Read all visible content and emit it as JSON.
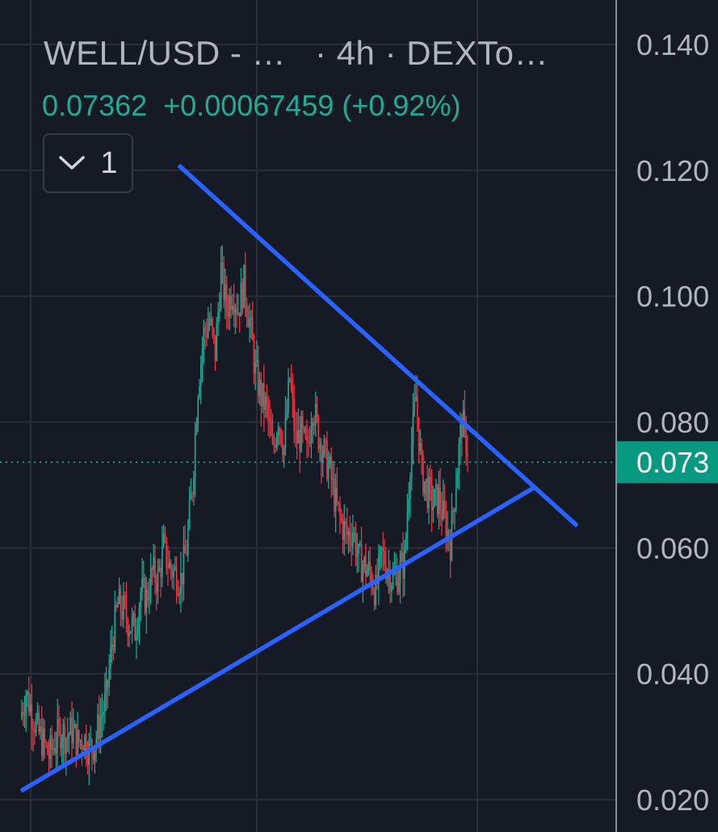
{
  "header": {
    "symbol": "WELL/USD - …",
    "interval": "· 4h · DEXTo…",
    "price": "0.07362",
    "change": "+0.00067459 (+0.92%)",
    "collapse_count": "1",
    "chevron_icon": "chevron-down-icon"
  },
  "colors": {
    "background": "#161a25",
    "grid": "#2a2e39",
    "up": "#22ab94",
    "down": "#f23645",
    "trendline": "#2962ff",
    "axis_text": "#b2b5be",
    "price_badge": "#089981"
  },
  "chart_data": {
    "type": "candlestick",
    "title": "WELL/USD - …  · 4h · DEXTo…",
    "interval": "4h",
    "ylim": [
      0.02,
      0.14
    ],
    "y_ticks": [
      "0.020",
      "0.040",
      "0.060",
      "0.080",
      "0.100",
      "0.120",
      "0.140"
    ],
    "last_price_label": "0.073",
    "last_price": 0.07362,
    "grid": true,
    "series": [
      {
        "values": [
          0.033,
          0.037,
          0.034,
          0.031,
          0.029,
          0.027,
          0.029,
          0.031,
          0.03,
          0.031,
          0.029,
          0.03,
          0.028,
          0.029,
          0.033,
          0.036,
          0.045,
          0.051,
          0.05,
          0.048,
          0.047,
          0.053,
          0.052,
          0.056,
          0.055,
          0.06,
          0.057,
          0.056,
          0.055,
          0.06,
          0.07,
          0.086,
          0.094,
          0.096,
          0.091,
          0.104,
          0.098,
          0.101,
          0.098,
          0.102,
          0.096,
          0.088,
          0.084,
          0.082,
          0.075,
          0.081,
          0.076,
          0.087,
          0.077,
          0.078,
          0.075,
          0.083,
          0.078,
          0.075,
          0.072,
          0.067,
          0.064,
          0.062,
          0.063,
          0.058,
          0.057,
          0.056,
          0.053,
          0.059,
          0.057,
          0.055,
          0.056,
          0.058,
          0.074,
          0.084,
          0.072,
          0.069,
          0.067,
          0.068,
          0.064,
          0.061,
          0.071,
          0.08,
          0.076
        ]
      }
    ],
    "trendlines": [
      {
        "name": "descending resistance",
        "from": {
          "bar": 27.5,
          "price": 0.1208
        },
        "to": {
          "bar": 97.0,
          "price": 0.0635
        }
      },
      {
        "name": "ascending support",
        "from": {
          "bar": 0.0,
          "price": 0.0214
        },
        "to": {
          "bar": 89.5,
          "price": 0.0696
        }
      }
    ]
  }
}
